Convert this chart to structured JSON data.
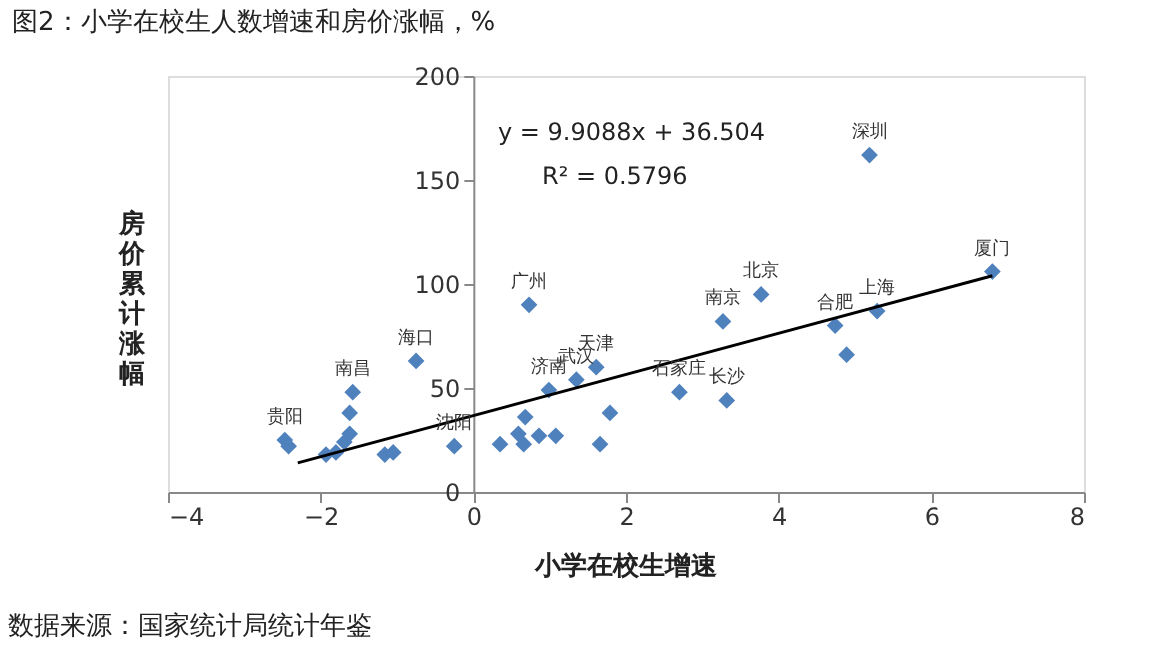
{
  "chart_data": {
    "type": "scatter",
    "title": "图2：小学在校生人数增速和房价涨幅，%",
    "xlabel": "小学在校生增速",
    "ylabel": "房价累计涨幅",
    "xlim": [
      -4,
      8
    ],
    "xticks": [
      -4,
      -2,
      0,
      2,
      4,
      6,
      8
    ],
    "ylim": [
      0,
      200
    ],
    "yticks": [
      0,
      50,
      100,
      150,
      200
    ],
    "grid": false,
    "series": [
      {
        "type": "scatter",
        "marker": "diamond",
        "color": "#4f81bd",
        "x": [
          -2.47,
          -2.42,
          -1.93,
          -1.8,
          -1.69,
          -1.62,
          -1.58,
          -1.62,
          -1.16,
          -1.05,
          -0.75,
          -0.25,
          0.35,
          0.59,
          0.68,
          0.66,
          0.73,
          0.99,
          0.86,
          1.08,
          1.35,
          1.61,
          1.66,
          1.79,
          2.7,
          3.32,
          3.27,
          3.77,
          5.19,
          4.74,
          4.89,
          5.29,
          6.8
        ],
        "values": [
          25,
          22,
          18,
          19,
          24,
          28,
          48,
          38,
          18,
          19,
          63,
          22,
          23,
          28,
          36,
          23,
          90,
          49,
          27,
          27,
          54,
          60,
          23,
          38,
          48,
          44,
          82,
          95,
          162,
          80,
          66,
          87,
          106
        ]
      },
      {
        "type": "line",
        "marker": "none",
        "line_style": "solid",
        "color": "#000000",
        "x": [
          -2.3,
          6.8
        ],
        "values": [
          14,
          104
        ]
      }
    ],
    "annotations": [
      "y = 9.9088x + 36.504",
      "R² = 0.5796",
      {
        "text": "贵阳",
        "x": -2.47,
        "y": 25
      },
      {
        "text": "南昌",
        "x": -1.58,
        "y": 48
      },
      {
        "text": "海口",
        "x": -0.75,
        "y": 63
      },
      {
        "text": "沈阳",
        "x": -0.25,
        "y": 22
      },
      {
        "text": "广州",
        "x": 0.73,
        "y": 90
      },
      {
        "text": "济南",
        "x": 0.99,
        "y": 49
      },
      {
        "text": "武汉",
        "x": 1.35,
        "y": 54
      },
      {
        "text": "天津",
        "x": 1.61,
        "y": 60
      },
      {
        "text": "石家庄",
        "x": 2.7,
        "y": 48
      },
      {
        "text": "长沙",
        "x": 3.32,
        "y": 44
      },
      {
        "text": "南京",
        "x": 3.27,
        "y": 82
      },
      {
        "text": "北京",
        "x": 3.77,
        "y": 95
      },
      {
        "text": "深圳",
        "x": 5.19,
        "y": 162
      },
      {
        "text": "合肥",
        "x": 4.74,
        "y": 80
      },
      {
        "text": "上海",
        "x": 5.29,
        "y": 87
      },
      {
        "text": "厦门",
        "x": 6.8,
        "y": 106
      },
      "数据来源：国家统计局统计年鉴"
    ]
  }
}
